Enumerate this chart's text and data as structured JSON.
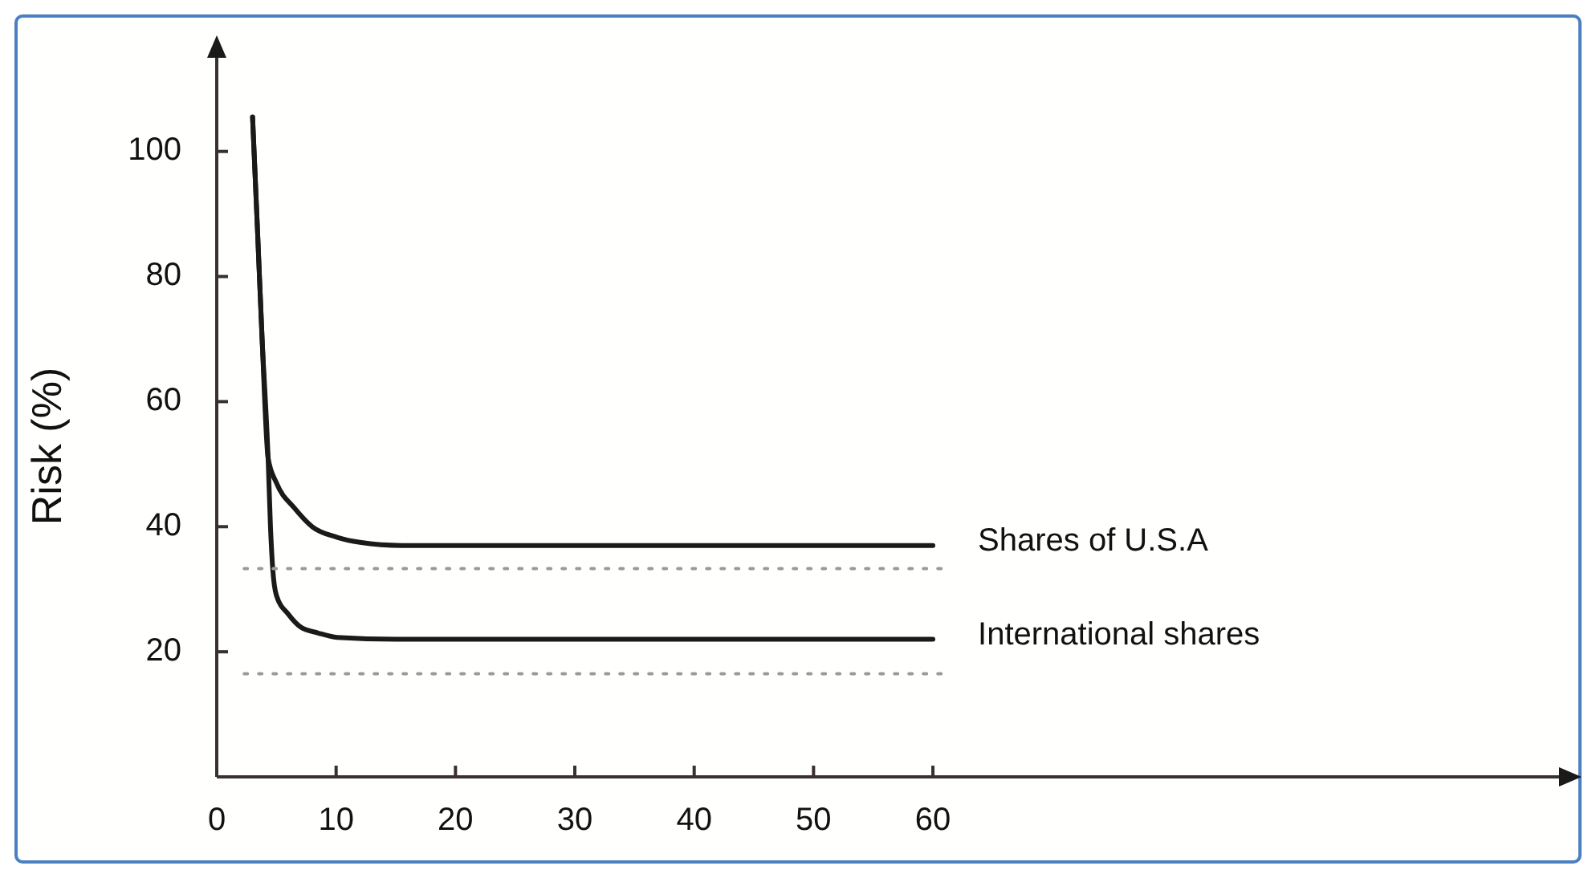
{
  "chart_data": {
    "type": "line",
    "ylabel": "Risk (%)",
    "xlim": [
      0,
      113
    ],
    "ylim": [
      0,
      116
    ],
    "xticks": [
      0,
      10,
      20,
      30,
      40,
      50,
      60
    ],
    "yticks": [
      20,
      40,
      60,
      80,
      100
    ],
    "grid": false,
    "marker": "none",
    "series": [
      {
        "name": "Shares of U.S.A",
        "color": "#1a1a1a",
        "line_style": "solid",
        "x": [
          3,
          3.4,
          3.8,
          4.3,
          5,
          6.5,
          8,
          10.1,
          12,
          15.5,
          25,
          40,
          60
        ],
        "values": [
          105.5,
          88,
          70,
          51,
          47,
          43,
          40,
          38.3,
          37.5,
          37,
          37,
          37,
          37
        ]
      },
      {
        "name": "International shares",
        "color": "#1a1a1a",
        "line_style": "solid",
        "x": [
          3,
          3.4,
          3.8,
          4.3,
          4.5,
          4.7,
          5,
          6,
          7,
          8.5,
          10.1,
          15,
          25,
          40,
          60
        ],
        "values": [
          105.5,
          88,
          70,
          51,
          40,
          33,
          29,
          26,
          24,
          23,
          22.3,
          22,
          22,
          22,
          22
        ]
      },
      {
        "color": "#9a9a9a",
        "line_style": "dotted",
        "x": [
          2.3,
          61
        ],
        "values": [
          33.3,
          33.3
        ]
      },
      {
        "color": "#9a9a9a",
        "line_style": "dotted",
        "x": [
          2.3,
          61
        ],
        "values": [
          16.5,
          16.5
        ]
      }
    ]
  }
}
